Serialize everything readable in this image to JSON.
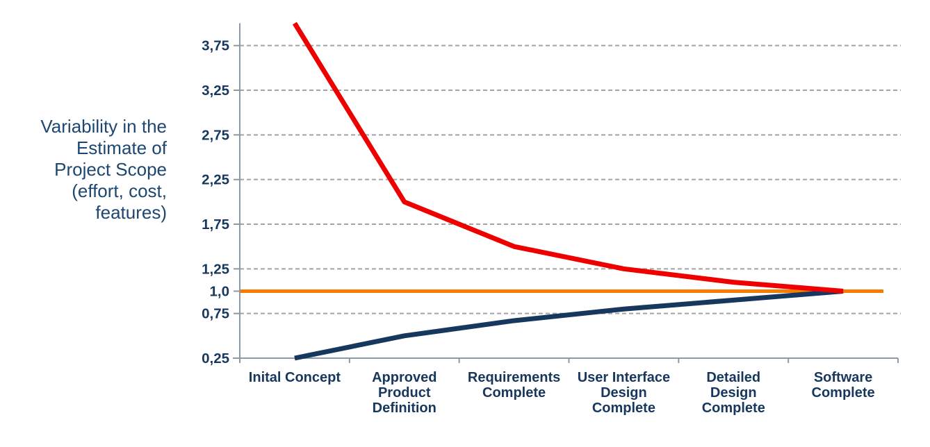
{
  "page": {
    "background": "#ffffff"
  },
  "y_axis_title": {
    "lines": [
      "Variability in the",
      "Estimate of",
      "Project Scope",
      "(effort, cost,",
      "features)"
    ]
  },
  "chart_data": {
    "type": "line",
    "title": "",
    "xlabel": "",
    "ylabel": "Variability in the Estimate of Project Scope (effort, cost, features)",
    "categories": [
      "Inital Concept",
      "Approved Product Definition",
      "Requirements Complete",
      "User Interface Design Complete",
      "Detailed Design Complete",
      "Software Complete"
    ],
    "category_label_lines": [
      [
        "Inital Concept"
      ],
      [
        "Approved",
        "Product",
        "Definition"
      ],
      [
        "Requirements",
        "Complete"
      ],
      [
        "User Interface",
        "Design",
        "Complete"
      ],
      [
        "Detailed",
        "Design",
        "Complete"
      ],
      [
        "Software",
        "Complete"
      ]
    ],
    "series": [
      {
        "name": "upper-bound",
        "color": "#ef0000",
        "width": 7,
        "values": [
          4.0,
          2.0,
          1.5,
          1.25,
          1.1,
          1.0
        ]
      },
      {
        "name": "lower-bound",
        "color": "#17375e",
        "width": 7,
        "values": [
          0.25,
          0.5,
          0.67,
          0.8,
          0.9,
          1.0
        ]
      }
    ],
    "baseline": {
      "name": "exact-estimate-baseline",
      "value": 1.0,
      "color": "#f57c00",
      "width": 5
    },
    "y_ticks": [
      {
        "value": 3.75,
        "label": "3,75"
      },
      {
        "value": 3.25,
        "label": "3,25"
      },
      {
        "value": 2.75,
        "label": "2,75"
      },
      {
        "value": 2.25,
        "label": "2,25"
      },
      {
        "value": 1.75,
        "label": "1,75"
      },
      {
        "value": 1.25,
        "label": "1,25"
      },
      {
        "value": 1.0,
        "label": "1,0"
      },
      {
        "value": 0.75,
        "label": "0,75"
      },
      {
        "value": 0.25,
        "label": "0,25"
      }
    ],
    "gridline_values": [
      3.75,
      3.25,
      2.75,
      2.25,
      1.75,
      1.25,
      0.75
    ],
    "ylim": [
      0.25,
      4.0
    ],
    "grid": true,
    "legend": "none",
    "colors": {
      "grid": "#a3a3a3",
      "axis": "#8e99a6",
      "tick_text": "#17375e",
      "category_text": "#17375e"
    }
  }
}
